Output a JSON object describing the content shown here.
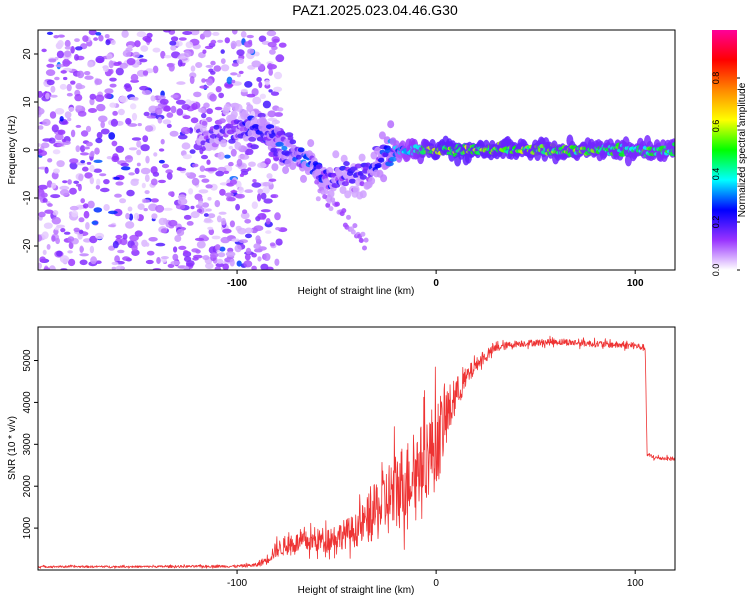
{
  "title": "PAZ1.2025.023.04.46.G30",
  "chart_data": [
    {
      "type": "heatmap",
      "xlabel": "Height of straight line (km)",
      "ylabel": "Frequency (Hz)",
      "xlim": [
        -200,
        120
      ],
      "ylim": [
        -25,
        25
      ],
      "xticks": [
        -100,
        0,
        100
      ],
      "yticks": [
        -20,
        -10,
        0,
        10,
        20
      ],
      "colorbar": {
        "label": "Normalized spectral amplitude",
        "range": [
          0,
          1
        ],
        "ticks": [
          0.0,
          0.2,
          0.4,
          0.6,
          0.8
        ],
        "tick_labels": [
          "0.0",
          "0.2",
          "0.4",
          "0.6",
          "0.8"
        ],
        "colormap": [
          "#ffffff",
          "#9933ff",
          "#0000ff",
          "#00ffff",
          "#00ff00",
          "#ffff00",
          "#ff8800",
          "#ff0000",
          "#ff0099"
        ]
      },
      "features": [
        {
          "segment": "diffuse noise",
          "x_range": [
            -200,
            -85
          ],
          "freq_range": [
            -25,
            25
          ],
          "amplitude": 0.08
        },
        {
          "segment": "tone ridge",
          "x": [
            -120,
            -100,
            -85,
            -70,
            -55,
            -40,
            -30,
            -20,
            0,
            120
          ],
          "freq": [
            3,
            5,
            3,
            -1,
            -6,
            -6,
            -2,
            0,
            0,
            0
          ],
          "amplitude": [
            0.12,
            0.15,
            0.2,
            0.22,
            0.18,
            0.15,
            0.2,
            0.28,
            0.5,
            0.42
          ]
        },
        {
          "segment": "descending branch",
          "x": [
            -60,
            -50,
            -40,
            -35
          ],
          "freq": [
            -8,
            -12,
            -17,
            -20
          ],
          "amplitude": 0.08
        }
      ]
    },
    {
      "type": "line",
      "xlabel": "Height of straight line (km)",
      "ylabel": "SNR (10 * v/v)",
      "xlim": [
        -200,
        120
      ],
      "ylim": [
        0,
        5800
      ],
      "xticks": [
        -100,
        0,
        100
      ],
      "yticks": [
        1000,
        2000,
        3000,
        4000,
        5000
      ],
      "color": "#ee3333",
      "x": [
        -200,
        -150,
        -100,
        -90,
        -85,
        -80,
        -70,
        -60,
        -50,
        -40,
        -30,
        -20,
        -10,
        0,
        10,
        20,
        30,
        40,
        60,
        80,
        100,
        105,
        106,
        110,
        120
      ],
      "y_mean": [
        80,
        80,
        90,
        120,
        250,
        500,
        650,
        700,
        800,
        950,
        1400,
        1900,
        2400,
        3000,
        4200,
        4900,
        5300,
        5400,
        5450,
        5400,
        5350,
        5300,
        2750,
        2680,
        2650
      ],
      "y_spread": [
        30,
        30,
        40,
        60,
        150,
        250,
        300,
        350,
        400,
        500,
        900,
        1300,
        1100,
        1400,
        500,
        200,
        130,
        100,
        100,
        100,
        100,
        100,
        80,
        60,
        60
      ]
    }
  ]
}
